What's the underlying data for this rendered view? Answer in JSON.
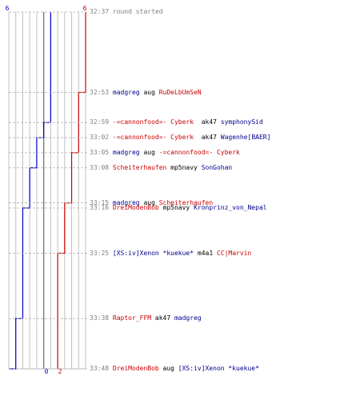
{
  "chart_data": {
    "type": "line",
    "teams": [
      {
        "name": "blue",
        "color": "#0000cc",
        "start": 6,
        "end": 0
      },
      {
        "name": "red",
        "color": "#cc0000",
        "start": 6,
        "end": 2
      }
    ],
    "ylim": [
      0,
      11
    ],
    "events": [
      {
        "time": "32:37",
        "parts": [
          {
            "t": "round started",
            "c": "gray"
          }
        ]
      },
      {
        "time": "32:53",
        "parts": [
          {
            "t": "madgreg",
            "c": "blue"
          },
          {
            "t": " aug ",
            "c": "plain"
          },
          {
            "t": "RuDeLbUmSeN",
            "c": "red"
          }
        ]
      },
      {
        "time": "32:59",
        "parts": [
          {
            "t": "-=cannonfood=- Cyberk",
            "c": "red"
          },
          {
            "t": "  ak47 ",
            "c": "plain"
          },
          {
            "t": "symphonySid",
            "c": "blue"
          }
        ]
      },
      {
        "time": "33:02",
        "parts": [
          {
            "t": "-=cannonfood=- Cyberk",
            "c": "red"
          },
          {
            "t": "  ak47 ",
            "c": "plain"
          },
          {
            "t": "Wagenhe[BAER]",
            "c": "blue"
          }
        ]
      },
      {
        "time": "33:05",
        "parts": [
          {
            "t": "madgreg",
            "c": "blue"
          },
          {
            "t": " aug ",
            "c": "plain"
          },
          {
            "t": "-=cannonfood=- Cyberk",
            "c": "red"
          }
        ]
      },
      {
        "time": "33:08",
        "parts": [
          {
            "t": "Scheiterhaufen",
            "c": "red"
          },
          {
            "t": " mp5navy ",
            "c": "plain"
          },
          {
            "t": "SonGohan",
            "c": "blue"
          }
        ]
      },
      {
        "time": "33:15",
        "parts": [
          {
            "t": "madgreg",
            "c": "blue"
          },
          {
            "t": " aug ",
            "c": "plain"
          },
          {
            "t": "Scheiterhaufen",
            "c": "red"
          }
        ]
      },
      {
        "time": "33:16",
        "parts": [
          {
            "t": "DreiModenBob",
            "c": "red"
          },
          {
            "t": " mp5navy ",
            "c": "plain"
          },
          {
            "t": "Kronprinz_von_Nepal",
            "c": "blue"
          }
        ]
      },
      {
        "time": "33:25",
        "parts": [
          {
            "t": "[XS:iv]Xenon *kuekue*",
            "c": "blue"
          },
          {
            "t": " m4a1 ",
            "c": "plain"
          },
          {
            "t": "CC|Marvin",
            "c": "red"
          }
        ]
      },
      {
        "time": "33:38",
        "parts": [
          {
            "t": "Raptor_FFM",
            "c": "red"
          },
          {
            "t": " ak47 ",
            "c": "plain"
          },
          {
            "t": "madgreg",
            "c": "blue"
          }
        ]
      },
      {
        "time": "33:48",
        "parts": [
          {
            "t": "DreiModenBob",
            "c": "red"
          },
          {
            "t": " aug ",
            "c": "plain"
          },
          {
            "t": "[XS:iv]Xenon *kuekue*",
            "c": "blue"
          }
        ]
      }
    ]
  },
  "colors": {
    "blue": "#0000cc",
    "red": "#cc0000",
    "text_blue": "#00008b",
    "time_gray": "#808080",
    "grid": "#c0c0c0"
  }
}
